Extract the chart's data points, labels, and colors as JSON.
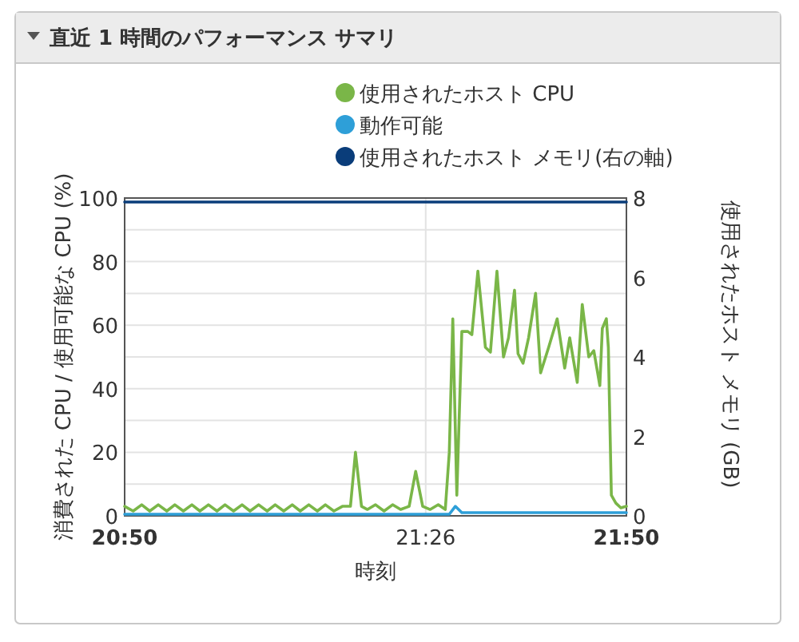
{
  "chart_data": {
    "type": "line",
    "title": "直近 1 時間のパフォーマンス サマリ",
    "xlabel": "時刻",
    "ylabel": "消費された CPU / 使用可能な CPU (%)",
    "y2label": "使用されたホスト メモリ (GB)",
    "xlim": [
      20.833,
      21.833
    ],
    "xticks": [
      {
        "value": 20.833,
        "label": "20:50"
      },
      {
        "value": 21.433,
        "label": "21:26"
      },
      {
        "value": 21.833,
        "label": "21:50"
      }
    ],
    "ylim": [
      0,
      100
    ],
    "yticks": [
      0,
      {
        "value": 10,
        "label": null
      },
      20,
      {
        "value": 30,
        "label": null
      },
      40,
      {
        "value": 50,
        "label": null
      },
      60,
      {
        "value": 70,
        "label": null
      },
      80,
      {
        "value": 90,
        "label": null
      },
      100
    ],
    "y2lim": [
      0,
      8
    ],
    "y2ticks": [
      0,
      2,
      4,
      6,
      8
    ],
    "grid": true,
    "legend": "top",
    "marker": "none",
    "series": [
      {
        "name": "使用されたホスト CPU",
        "color": "#7ab648",
        "x": [
          20.833,
          20.85,
          20.867,
          20.883,
          20.9,
          20.917,
          20.933,
          20.95,
          20.967,
          20.983,
          21.0,
          21.017,
          21.033,
          21.05,
          21.067,
          21.083,
          21.1,
          21.117,
          21.133,
          21.15,
          21.167,
          21.183,
          21.2,
          21.217,
          21.233,
          21.25,
          21.267,
          21.283,
          21.293,
          21.305,
          21.317,
          21.333,
          21.35,
          21.367,
          21.383,
          21.4,
          21.413,
          21.427,
          21.442,
          21.458,
          21.472,
          21.48,
          21.487,
          21.495,
          21.505,
          21.517,
          21.525,
          21.537,
          21.552,
          21.562,
          21.575,
          21.588,
          21.598,
          21.61,
          21.617,
          21.627,
          21.638,
          21.652,
          21.662,
          21.678,
          21.695,
          21.71,
          21.72,
          21.735,
          21.745,
          21.758,
          21.768,
          21.78,
          21.785,
          21.793,
          21.797,
          21.803,
          21.812,
          21.822,
          21.833
        ],
        "values": [
          3,
          1.5,
          3.5,
          1.5,
          3.5,
          1.5,
          3.5,
          1.5,
          3.5,
          1.5,
          3.5,
          1.5,
          3.5,
          1.5,
          3.5,
          1.5,
          3.5,
          1.5,
          3.5,
          1.5,
          3.5,
          1.5,
          3.5,
          1.5,
          3.5,
          1.5,
          3,
          3,
          20,
          3,
          2,
          3.5,
          1.5,
          3.5,
          2,
          3,
          14,
          3,
          2,
          3.5,
          2,
          20,
          62,
          6.5,
          58,
          58,
          57,
          77,
          53,
          51.5,
          77,
          50,
          56,
          71,
          51,
          48,
          56,
          70,
          45,
          53,
          62,
          46.5,
          56,
          42,
          66.5,
          50,
          52,
          41,
          59,
          62,
          53,
          6.5,
          4,
          2.5,
          3
        ]
      },
      {
        "name": "動作可能",
        "color": "#2e9fd8",
        "x": [
          20.833,
          21.1,
          21.3,
          21.48,
          21.492,
          21.505,
          21.6,
          21.7,
          21.833
        ],
        "values": [
          0.5,
          0.5,
          0.5,
          0.5,
          3,
          1,
          1,
          1,
          1
        ]
      },
      {
        "name": "使用されたホスト メモリ(右の軸)",
        "color": "#0a3d7a",
        "axis": "y2",
        "x": [
          20.833,
          21.833
        ],
        "values": [
          7.9,
          7.9
        ]
      }
    ]
  }
}
